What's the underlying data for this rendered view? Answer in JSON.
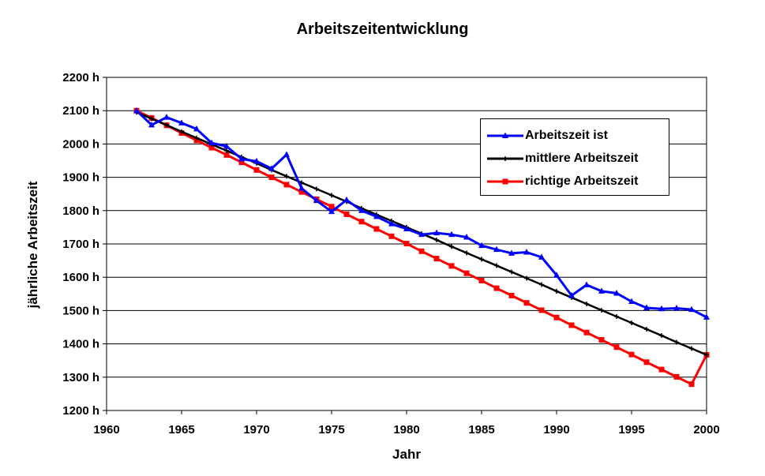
{
  "chart_data": {
    "type": "line",
    "title": "Arbeitszeitentwicklung",
    "xlabel": "Jahr",
    "ylabel": "jährliche Arbeitszeit",
    "xlim": [
      1960,
      2000
    ],
    "ylim": [
      1200,
      2200
    ],
    "x_ticks": [
      "1960",
      "1965",
      "1970",
      "1975",
      "1980",
      "1985",
      "1990",
      "1995",
      "2000"
    ],
    "y_ticks": [
      "1200 h",
      "1300 h",
      "1400 h",
      "1500 h",
      "1600 h",
      "1700 h",
      "1800 h",
      "1900 h",
      "2000 h",
      "2100 h",
      "2200 h"
    ],
    "grid": "horizontal",
    "legend_position": "top-right",
    "x": [
      1962,
      1963,
      1964,
      1965,
      1966,
      1967,
      1968,
      1969,
      1970,
      1971,
      1972,
      1973,
      1974,
      1975,
      1976,
      1977,
      1978,
      1979,
      1980,
      1981,
      1982,
      1983,
      1984,
      1985,
      1986,
      1987,
      1988,
      1989,
      1990,
      1991,
      1992,
      1993,
      1994,
      1995,
      1996,
      1997,
      1998,
      1999,
      2000
    ],
    "series": [
      {
        "name": "Arbeitszeit ist",
        "color": "#0000ff",
        "marker": "triangle",
        "values": [
          2100,
          2057,
          2080,
          2063,
          2045,
          2003,
          1993,
          1955,
          1948,
          1926,
          1968,
          1867,
          1830,
          1797,
          1832,
          1800,
          1782,
          1760,
          1745,
          1728,
          1733,
          1728,
          1720,
          1695,
          1683,
          1672,
          1675,
          1660,
          1606,
          1545,
          1577,
          1558,
          1552,
          1527,
          1508,
          1505,
          1507,
          1503,
          1480
        ]
      },
      {
        "name": "mittlere Arbeitszeit",
        "color": "#000000",
        "marker": "plus",
        "values": [
          2095,
          2076,
          2057,
          2037,
          2018,
          1999,
          1980,
          1961,
          1942,
          1922,
          1903,
          1884,
          1865,
          1846,
          1827,
          1807,
          1788,
          1769,
          1750,
          1731,
          1712,
          1692,
          1673,
          1654,
          1635,
          1616,
          1597,
          1578,
          1558,
          1539,
          1520,
          1501,
          1482,
          1463,
          1444,
          1425,
          1405,
          1386,
          1367
        ]
      },
      {
        "name": "richtige Arbeitszeit",
        "color": "#ff0000",
        "marker": "square",
        "values": [
          2100,
          2078,
          2056,
          2033,
          2011,
          1989,
          1967,
          1945,
          1922,
          1900,
          1878,
          1856,
          1834,
          1812,
          1789,
          1767,
          1745,
          1723,
          1701,
          1678,
          1656,
          1634,
          1612,
          1590,
          1567,
          1545,
          1523,
          1501,
          1479,
          1456,
          1434,
          1412,
          1390,
          1368,
          1345,
          1323,
          1301,
          1279,
          1367
        ]
      }
    ]
  }
}
